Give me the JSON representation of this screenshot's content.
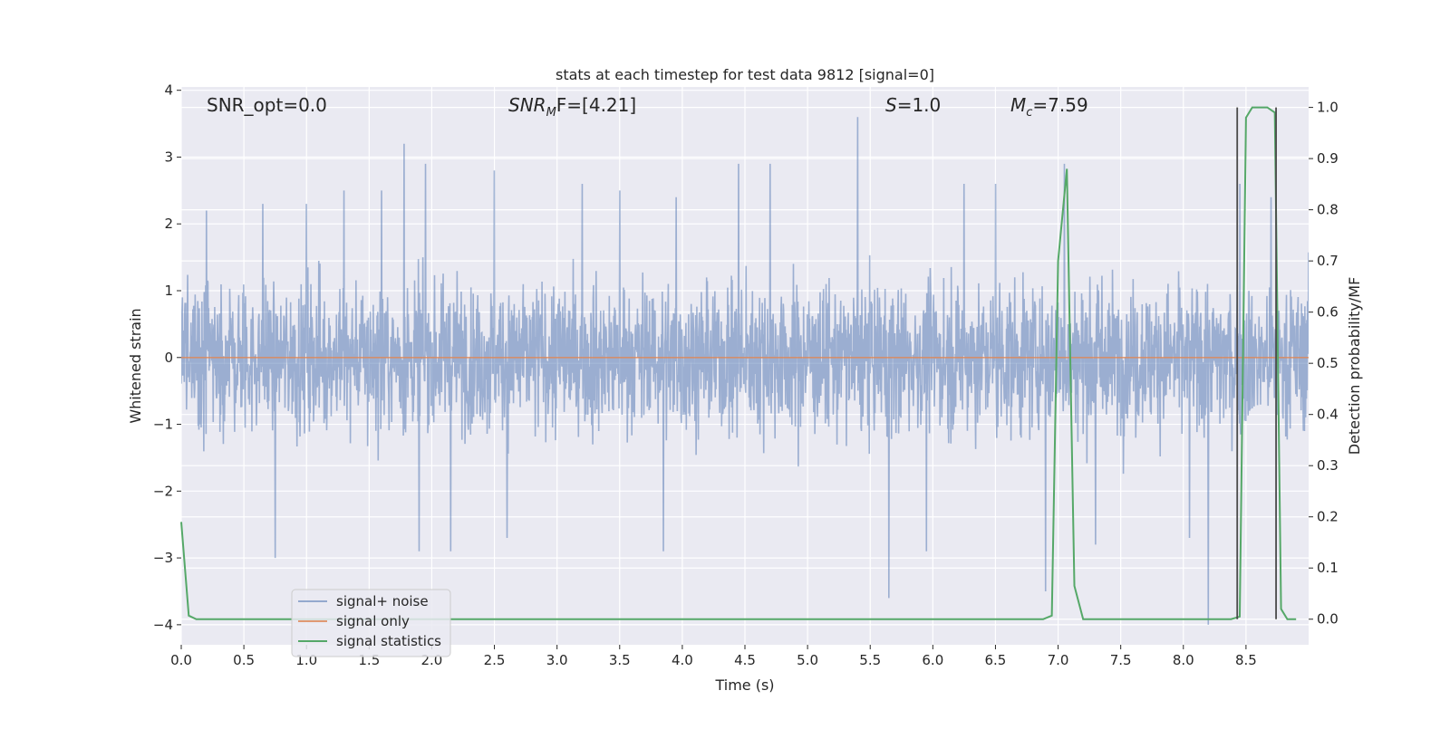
{
  "chart_data": {
    "type": "line",
    "title": "stats at each timestep for test data 9812 [signal=0]",
    "xlabel": "Time (s)",
    "ylabel": "Whitened strain",
    "ylabel_right": "Detection probability/MF",
    "xlim": [
      0,
      9
    ],
    "ylim": [
      -4.3,
      4.05
    ],
    "ylim_right": [
      -0.05,
      1.04
    ],
    "x_ticks": [
      "0.0",
      "0.5",
      "1.0",
      "1.5",
      "2.0",
      "2.5",
      "3.0",
      "3.5",
      "4.0",
      "4.5",
      "5.0",
      "5.5",
      "6.0",
      "6.5",
      "7.0",
      "7.5",
      "8.0",
      "8.5"
    ],
    "y_ticks": [
      "4",
      "3",
      "2",
      "1",
      "0",
      "−1",
      "−2",
      "−3",
      "−4"
    ],
    "y_ticks_right": [
      "1.0",
      "0.9",
      "0.8",
      "0.7",
      "0.6",
      "0.5",
      "0.4",
      "0.3",
      "0.2",
      "0.1",
      "0.0"
    ],
    "annotations": {
      "snr_opt": "SNR_opt=0.0",
      "snr_mf_main": "SNR",
      "snr_mf_sub": "M",
      "snr_mf_rest": "F=[4.21]",
      "s_main": "S",
      "s_rest": "=1.0",
      "mc_main": "M",
      "mc_sub": "c",
      "mc_rest": "=7.59"
    },
    "legend": {
      "placement": "lower-left",
      "entries": [
        "signal+ noise",
        "signal only",
        "signal statistics"
      ]
    },
    "grid": true,
    "series": [
      {
        "name": "signal+ noise",
        "kind": "noise",
        "color": "#4c72b0",
        "envelope": 1.4,
        "peaks": [
          [
            0.2,
            2.2
          ],
          [
            0.65,
            2.3
          ],
          [
            1.0,
            2.3
          ],
          [
            1.3,
            2.5
          ],
          [
            1.6,
            2.5
          ],
          [
            1.78,
            3.2
          ],
          [
            1.95,
            2.9
          ],
          [
            2.5,
            2.8
          ],
          [
            2.6,
            -2.7
          ],
          [
            3.2,
            2.6
          ],
          [
            3.5,
            2.5
          ],
          [
            3.85,
            -2.9
          ],
          [
            4.45,
            2.9
          ],
          [
            4.7,
            2.9
          ],
          [
            5.4,
            3.6
          ],
          [
            5.65,
            -3.6
          ],
          [
            5.95,
            -2.9
          ],
          [
            6.5,
            2.6
          ],
          [
            6.9,
            -3.5
          ],
          [
            7.05,
            2.9
          ],
          [
            8.2,
            -4.0
          ],
          [
            8.45,
            2.6
          ],
          [
            8.7,
            2.4
          ],
          [
            0.75,
            -3.0
          ],
          [
            1.9,
            -2.9
          ],
          [
            2.15,
            -2.9
          ],
          [
            7.3,
            -2.8
          ],
          [
            8.05,
            -2.7
          ],
          [
            6.25,
            2.6
          ],
          [
            3.95,
            2.4
          ]
        ]
      },
      {
        "name": "signal only",
        "kind": "flat",
        "color": "#dd8452",
        "value": 0
      },
      {
        "name": "signal statistics",
        "kind": "line",
        "color": "#55a868",
        "axis": "right",
        "x": [
          0.0,
          0.06,
          0.12,
          6.88,
          6.95,
          7.0,
          7.07,
          7.13,
          7.2,
          8.38,
          8.45,
          8.5,
          8.55,
          8.67,
          8.73,
          8.78,
          8.83,
          8.9
        ],
        "y": [
          0.19,
          0.007,
          0.0,
          0.0,
          0.007,
          0.7,
          0.88,
          0.065,
          0.0,
          0.0,
          0.005,
          0.98,
          1.0,
          1.0,
          0.99,
          0.02,
          0.0,
          0.0
        ]
      }
    ],
    "vlines": [
      {
        "x": 8.43,
        "y": [
          0.0,
          1.0
        ],
        "color": "#4a4a4a"
      },
      {
        "x": 8.74,
        "y": [
          0.0,
          1.0
        ],
        "color": "#4a4a4a"
      }
    ]
  }
}
